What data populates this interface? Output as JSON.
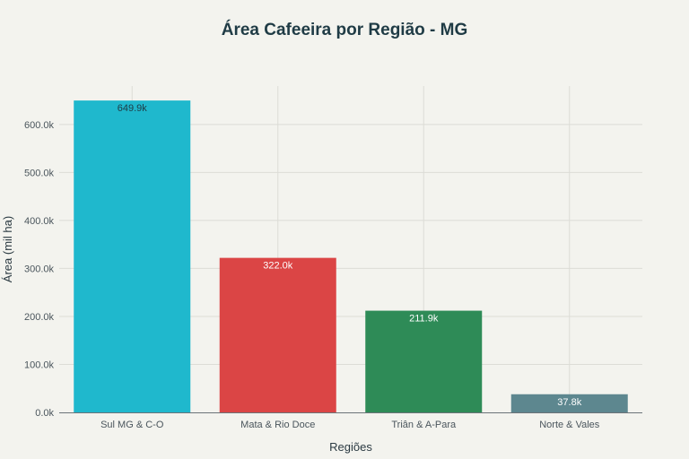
{
  "chart_data": {
    "type": "bar",
    "title": "Área Cafeeira por Região - MG",
    "xlabel": "Regiões",
    "ylabel": "Área (mil ha)",
    "categories": [
      "Sul MG & C-O",
      "Mata & Rio Doce",
      "Triân & A-Para",
      "Norte & Vales"
    ],
    "values": [
      649.9,
      322.0,
      211.9,
      37.8
    ],
    "data_labels": [
      "649.9k",
      "322.0k",
      "211.9k",
      "37.8k"
    ],
    "colors": [
      "#1fb8cd",
      "#db4545",
      "#2e8b57",
      "#5d878f"
    ],
    "label_colors": [
      "#1f3b45",
      "#ffffff",
      "#ffffff",
      "#ffffff"
    ],
    "ylim": [
      0,
      680
    ],
    "yticks": [
      0,
      100,
      200,
      300,
      400,
      500,
      600
    ],
    "ytick_labels": [
      "0.0k",
      "100.0k",
      "200.0k",
      "300.0k",
      "400.0k",
      "500.0k",
      "600.0k"
    ],
    "grid": true,
    "legend": "none"
  }
}
